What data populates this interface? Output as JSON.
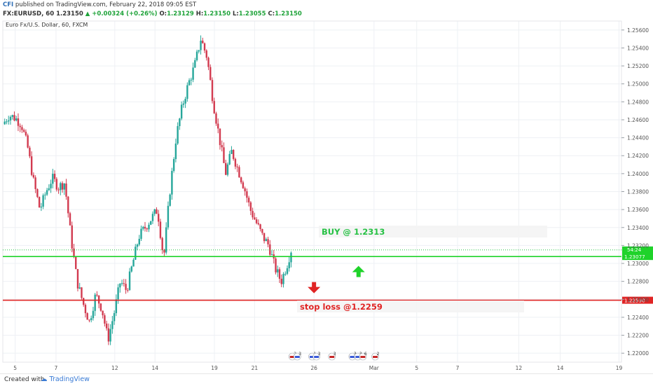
{
  "header": {
    "line1_brand": "CFI",
    "line1_text": " published on TradingView.com, February 22, 2018 09:05 EST",
    "symbol": "FX:EURUSD, 60",
    "last": "1.23150",
    "change": "+0.00324 (+0.26%)",
    "o_label": "O:",
    "o_value": "1.23129",
    "h_label": "H:",
    "h_value": "1.23150",
    "l_label": "L:",
    "l_value": "1.23055",
    "c_label": "C:",
    "c_value": "1.23150"
  },
  "footer": {
    "created_with": "Created with",
    "brand": "TradingView"
  },
  "chart_data": {
    "type": "candlestick",
    "title": "Euro Fx/U.S. Dollar, 60, FXCM",
    "ylim": [
      1.219,
      1.257
    ],
    "xlim": [
      0,
      100
    ],
    "y_ticks": [
      "1.22000",
      "1.22200",
      "1.22400",
      "1.22600",
      "1.22800",
      "1.23000",
      "1.23200",
      "1.23400",
      "1.23600",
      "1.23800",
      "1.24000",
      "1.24200",
      "1.24400",
      "1.24600",
      "1.24800",
      "1.25000",
      "1.25200",
      "1.25400",
      "1.25600"
    ],
    "x_ticks": [
      {
        "label": "5",
        "x": 2
      },
      {
        "label": "7",
        "x": 8.6
      },
      {
        "label": "12",
        "x": 18.1
      },
      {
        "label": "14",
        "x": 24.6
      },
      {
        "label": "19",
        "x": 34.2
      },
      {
        "label": "21",
        "x": 40.7
      },
      {
        "label": "26",
        "x": 50.3
      },
      {
        "label": "Mar",
        "x": 60
      },
      {
        "label": "5",
        "x": 66.9
      },
      {
        "label": "7",
        "x": 73.5
      },
      {
        "label": "12",
        "x": 83.4
      },
      {
        "label": "14",
        "x": 90.1
      },
      {
        "label": "19",
        "x": 99.6
      }
    ],
    "price_path": [
      [
        0,
        1.2455
      ],
      [
        1,
        1.2465
      ],
      [
        2,
        1.2462
      ],
      [
        3,
        1.2455
      ],
      [
        4,
        1.243
      ],
      [
        5,
        1.239
      ],
      [
        6,
        1.236
      ],
      [
        7,
        1.238
      ],
      [
        8,
        1.2395
      ],
      [
        9,
        1.2385
      ],
      [
        10,
        1.239
      ],
      [
        11,
        1.233
      ],
      [
        12,
        1.228
      ],
      [
        13,
        1.2255
      ],
      [
        14,
        1.2235
      ],
      [
        15,
        1.2265
      ],
      [
        16,
        1.225
      ],
      [
        17,
        1.2215
      ],
      [
        18,
        1.2245
      ],
      [
        19,
        1.228
      ],
      [
        20,
        1.227
      ],
      [
        21,
        1.23
      ],
      [
        22,
        1.233
      ],
      [
        23,
        1.234
      ],
      [
        24,
        1.235
      ],
      [
        25,
        1.236
      ],
      [
        26,
        1.2305
      ],
      [
        27,
        1.238
      ],
      [
        28,
        1.244
      ],
      [
        29,
        1.2475
      ],
      [
        30,
        1.25
      ],
      [
        31,
        1.252
      ],
      [
        32,
        1.255
      ],
      [
        33,
        1.253
      ],
      [
        34,
        1.248
      ],
      [
        35,
        1.244
      ],
      [
        36,
        1.24
      ],
      [
        37,
        1.2425
      ],
      [
        38,
        1.2405
      ],
      [
        39,
        1.2385
      ],
      [
        40,
        1.236
      ],
      [
        41,
        1.2345
      ],
      [
        42,
        1.233
      ],
      [
        43,
        1.232
      ],
      [
        44,
        1.2295
      ],
      [
        45,
        1.228
      ],
      [
        46,
        1.23
      ],
      [
        46.6,
        1.2315
      ]
    ],
    "levels": [
      {
        "value": 1.2315,
        "label": "1.23150",
        "color": "#26c144",
        "style": "dotted"
      },
      {
        "value": 1.23077,
        "label": "1.23077",
        "color": "#1fd32a",
        "style": "solid",
        "sub_label": "54:24"
      },
      {
        "value": 1.2259,
        "label": "1.22590",
        "color": "#e02424",
        "style": "solid"
      }
    ],
    "annotations": [
      {
        "text": "BUY @ 1.2313",
        "color": "#26c144"
      },
      {
        "text": "stop loss @1.2259",
        "color": "#e02424"
      }
    ],
    "arrows": [
      {
        "direction": "up",
        "color": "#1fd32a",
        "x": 57.5,
        "y": 1.2291
      },
      {
        "direction": "down",
        "color": "#e02424",
        "x": 50.3,
        "y": 1.2273
      }
    ],
    "events": [
      {
        "label": "2",
        "x": 46.8,
        "color": "#c62828"
      },
      {
        "label": "3",
        "x": 47.6,
        "color": "#3a5bd9"
      },
      {
        "label": "1",
        "x": 50,
        "color": "#3a5bd9"
      },
      {
        "label": "3",
        "x": 50.7,
        "color": "#3a5bd9"
      },
      {
        "label": "3",
        "x": 53.2,
        "color": "#c62828"
      },
      {
        "label": "3",
        "x": 56.5,
        "color": "#3a5bd9"
      },
      {
        "label": "3",
        "x": 57.4,
        "color": "#3a5bd9"
      },
      {
        "label": "6",
        "x": 58.2,
        "color": "#c62828"
      },
      {
        "label": "2",
        "x": 60.2,
        "color": "#c62828"
      }
    ],
    "colors": {
      "up": "#26a69a",
      "down": "#d23a4f",
      "grid": "#eef0f4"
    },
    "grid": true
  }
}
